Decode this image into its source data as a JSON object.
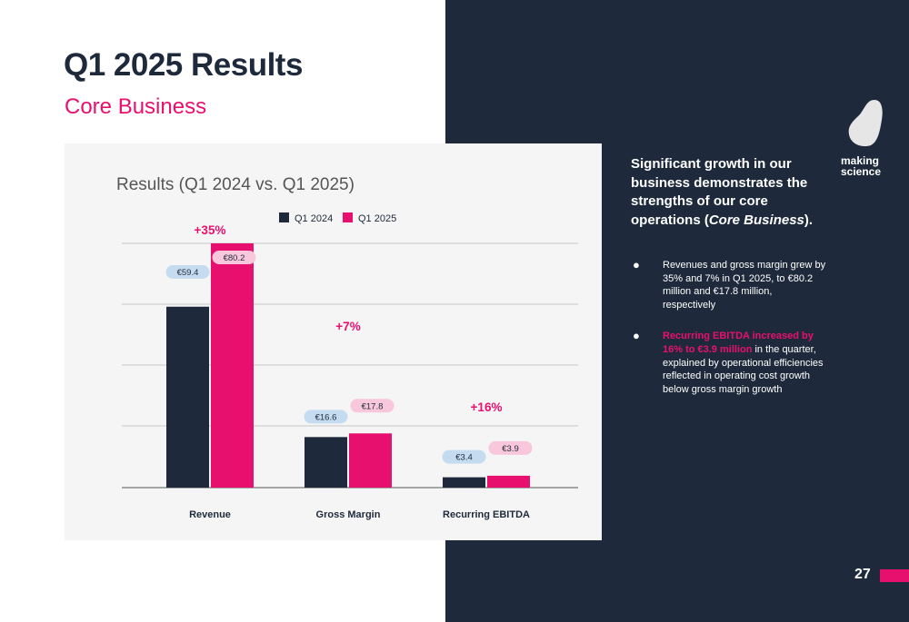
{
  "slide": {
    "title": "Q1 2025 Results",
    "subtitle": "Core Business",
    "page_number": "27"
  },
  "logo": {
    "line1": "making",
    "line2": "science"
  },
  "headline": {
    "part1": "Significant growth in our business demonstrates the strengths of our core operations (",
    "emphasis": "Core Business",
    "part2": ")."
  },
  "bullets": [
    {
      "bold": "",
      "text": "Revenues and gross margin grew by 35% and 7% in Q1 2025, to €80.2 million and €17.8 million, respectively"
    },
    {
      "bold": "Recurring EBITDA increased by 16% to €3.9 million",
      "text": " in the quarter, explained by operational efficiencies reflected in operating cost growth below gross margin growth"
    }
  ],
  "colors": {
    "navy": "#1e2a3b",
    "pink": "#e8106e",
    "label_2024_bg": "#c5dcf0",
    "label_2025_bg": "#f8c7dc"
  },
  "chart_data": {
    "type": "bar",
    "title": "Results (Q1 2024 vs. Q1 2025)",
    "categories": [
      "Revenue",
      "Gross Margin",
      "Recurring EBITDA"
    ],
    "series": [
      {
        "name": "Q1 2024",
        "values": [
          59.4,
          16.6,
          3.4
        ],
        "labels": [
          "€59.4",
          "€16.6",
          "€3.4"
        ]
      },
      {
        "name": "Q1 2025",
        "values": [
          80.2,
          17.8,
          3.9
        ],
        "labels": [
          "€80.2",
          "€17.8",
          "€3.9"
        ]
      }
    ],
    "growth_labels": [
      "+35%",
      "+7%",
      "+16%"
    ],
    "legend_position": "top",
    "grid": true
  }
}
